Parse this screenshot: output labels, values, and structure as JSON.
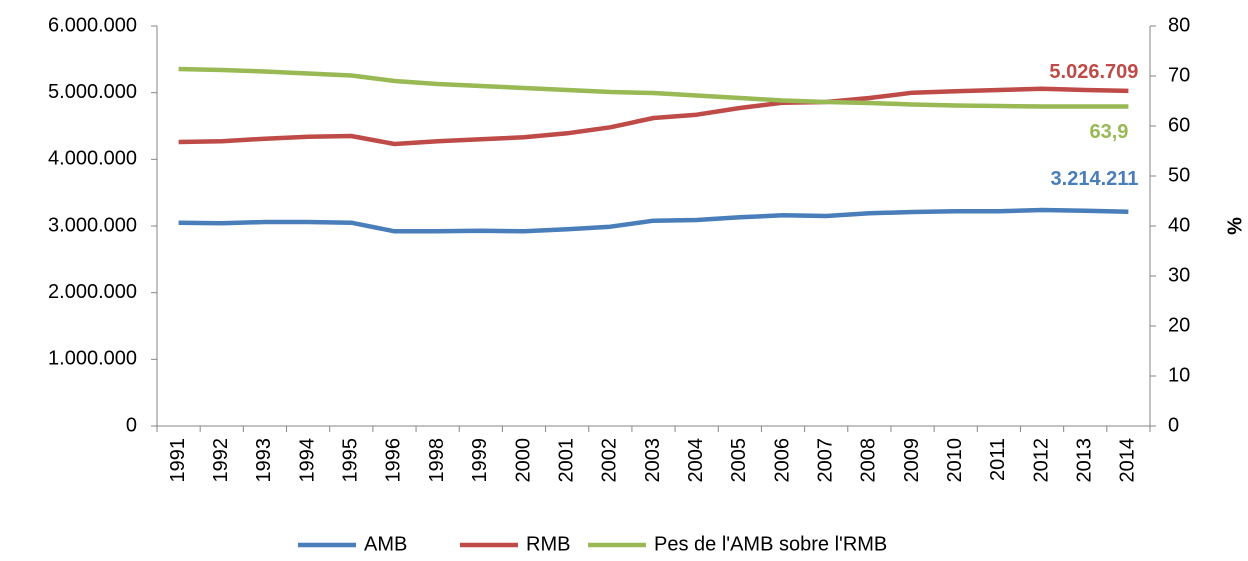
{
  "chart_data": {
    "type": "line",
    "categories": [
      "1991",
      "1992",
      "1993",
      "1994",
      "1995",
      "1996",
      "1998",
      "1999",
      "2000",
      "2001",
      "2002",
      "2003",
      "2004",
      "2005",
      "2006",
      "2007",
      "2008",
      "2009",
      "2010",
      "2011",
      "2012",
      "2013",
      "2014"
    ],
    "series": [
      {
        "name": "AMB",
        "color": "#4a7ebb",
        "values": [
          3050000,
          3040000,
          3060000,
          3060000,
          3050000,
          2920000,
          2920000,
          2930000,
          2920000,
          2950000,
          2990000,
          3080000,
          3090000,
          3130000,
          3160000,
          3150000,
          3190000,
          3210000,
          3220000,
          3220000,
          3240000,
          3230000,
          3214211
        ],
        "value_labels": [
          null,
          null,
          null,
          null,
          null,
          null,
          null,
          null,
          null,
          null,
          null,
          null,
          null,
          null,
          null,
          null,
          null,
          null,
          null,
          null,
          null,
          null,
          "3.214.211"
        ]
      },
      {
        "name": "RMB",
        "color": "#be4b48",
        "values": [
          4260000,
          4270000,
          4310000,
          4340000,
          4350000,
          4230000,
          4270000,
          4300000,
          4330000,
          4390000,
          4480000,
          4620000,
          4670000,
          4770000,
          4850000,
          4860000,
          4920000,
          5000000,
          5020000,
          5040000,
          5060000,
          5040000,
          5026709
        ],
        "value_labels": [
          null,
          null,
          null,
          null,
          null,
          null,
          null,
          null,
          null,
          null,
          null,
          null,
          null,
          null,
          null,
          null,
          null,
          null,
          null,
          null,
          null,
          null,
          "5.026.709"
        ]
      },
      {
        "name": "Pes de l'AMB sobre l'RMB",
        "color": "#98b954",
        "axis": "y2",
        "values": [
          71.4,
          71.2,
          70.9,
          70.5,
          70.1,
          69.0,
          68.4,
          68.0,
          67.6,
          67.2,
          66.8,
          66.6,
          66.1,
          65.6,
          65.1,
          64.8,
          64.6,
          64.3,
          64.1,
          64.0,
          63.9,
          63.9,
          63.9
        ],
        "value_labels": [
          null,
          null,
          null,
          null,
          null,
          null,
          null,
          null,
          null,
          null,
          null,
          null,
          null,
          null,
          null,
          null,
          null,
          null,
          null,
          null,
          null,
          null,
          "63,9"
        ]
      }
    ],
    "ylim": [
      0,
      6000000
    ],
    "yticks": [
      0,
      {
        "value": 1000000,
        "label": "1.000.000"
      },
      {
        "value": 2000000,
        "label": "2.000.000"
      },
      {
        "value": 3000000,
        "label": "3.000.000"
      },
      {
        "value": 4000000,
        "label": "4.000.000"
      },
      {
        "value": 5000000,
        "label": "5.000.000"
      },
      {
        "value": 6000000,
        "label": "6.000.000"
      }
    ],
    "y2lim": [
      0,
      80
    ],
    "y2ticks": [
      0,
      10,
      20,
      30,
      40,
      50,
      60,
      70,
      80
    ],
    "y2label": "%",
    "legend": "bottom"
  }
}
